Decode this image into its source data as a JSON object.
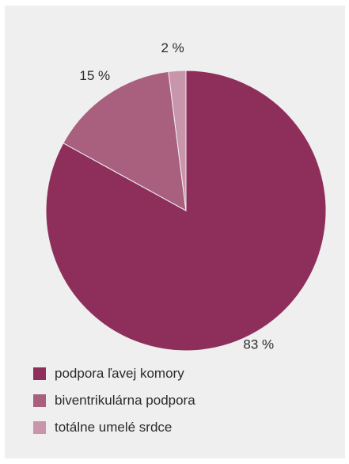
{
  "chart_data": {
    "type": "pie",
    "title": "",
    "categories": [
      "podpora ľavej komory",
      "biventrikulárna podpora",
      "totálne umelé srdce"
    ],
    "values": [
      83,
      15,
      2
    ],
    "value_labels": [
      "83 %",
      "15 %",
      "2 %"
    ],
    "colors": [
      "#8e2f5b",
      "#a9607f",
      "#c995ab"
    ],
    "start_angle": "12 o'clock",
    "direction": "clockwise",
    "legend_position": "bottom-left"
  }
}
